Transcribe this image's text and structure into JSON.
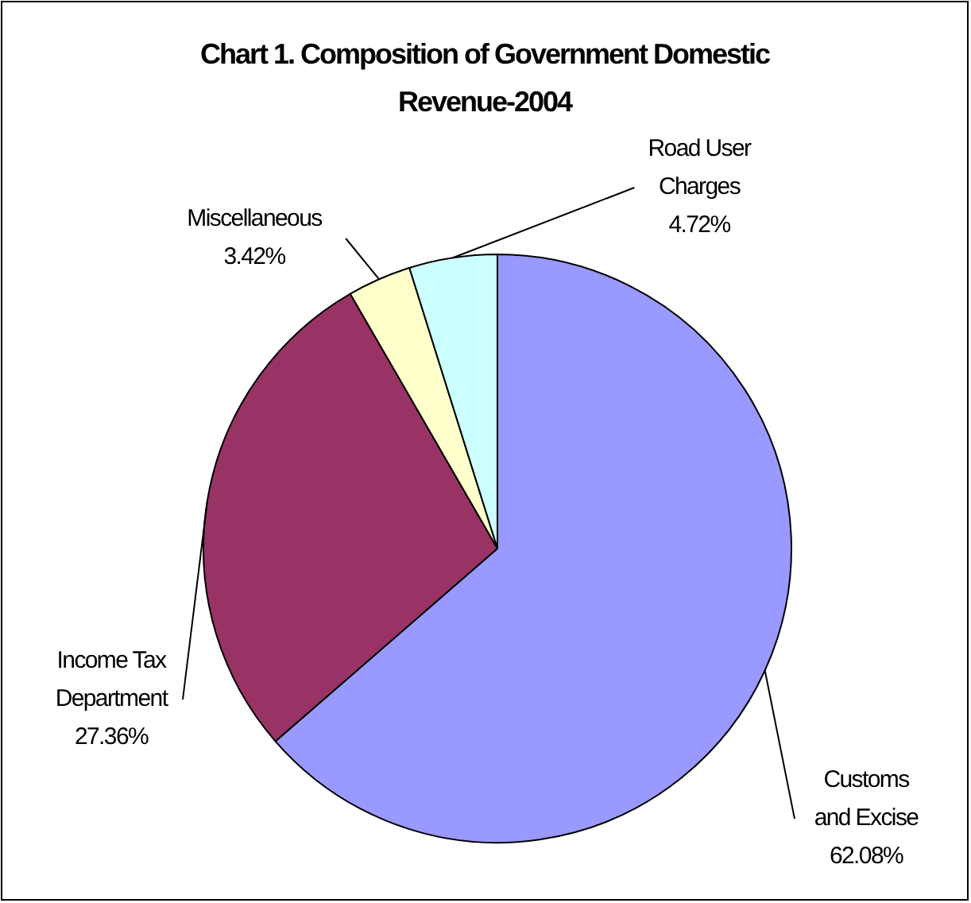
{
  "chart_data": {
    "type": "pie",
    "title": "Chart 1. Composition of Government Domestic Revenue-2004",
    "categories": [
      "Customs and Excise",
      "Income Tax Department",
      "Miscellaneous",
      "Road User Charges"
    ],
    "values": [
      62.08,
      27.36,
      3.42,
      4.72
    ],
    "value_labels": [
      "62.08%",
      "27.36%",
      "3.42%",
      "4.72%"
    ],
    "colors": [
      "#9999ff",
      "#993366",
      "#ffffcc",
      "#ccffff"
    ]
  }
}
